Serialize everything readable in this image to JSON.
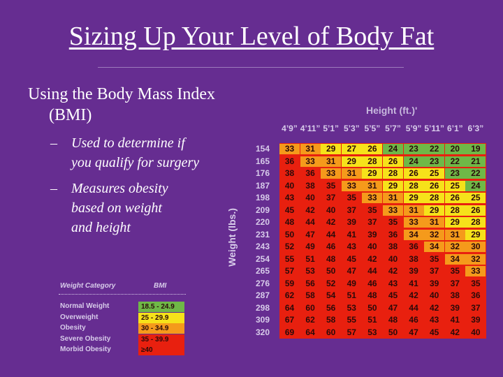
{
  "title": "Sizing Up Your Level of Body Fat",
  "bullets": {
    "main_line1": "Using the Body Mass Index",
    "main_line2": "(BMI)",
    "dash": "–",
    "sub1_line1": "Used to determine if",
    "sub1_line2": "you qualify for surgery",
    "sub2_line1": "Measures obesity",
    "sub2_line2": "based on weight",
    "sub2_line3": "and height"
  },
  "chart": {
    "height_label": "Height (ft.)'",
    "weight_label": "Weight (lbs.)",
    "heights": [
      "4’9”",
      "4’11”",
      "5’1”",
      "5’3”",
      "5’5”",
      "5’7”",
      "5’9”",
      "5’11”",
      "6’1”",
      "6’3”"
    ],
    "weights": [
      "154",
      "165",
      "176",
      "187",
      "198",
      "209",
      "220",
      "231",
      "243",
      "254",
      "265",
      "276",
      "287",
      "298",
      "309",
      "320"
    ],
    "rows": [
      [
        33,
        31,
        29,
        27,
        26,
        24,
        23,
        22,
        20,
        19
      ],
      [
        36,
        33,
        31,
        29,
        28,
        26,
        24,
        23,
        22,
        21
      ],
      [
        38,
        36,
        33,
        31,
        29,
        28,
        26,
        25,
        23,
        22
      ],
      [
        40,
        38,
        35,
        33,
        31,
        29,
        28,
        26,
        25,
        24
      ],
      [
        43,
        40,
        37,
        35,
        33,
        31,
        29,
        28,
        26,
        25
      ],
      [
        45,
        42,
        40,
        37,
        35,
        33,
        31,
        29,
        28,
        26
      ],
      [
        48,
        44,
        42,
        39,
        37,
        35,
        33,
        31,
        29,
        28
      ],
      [
        50,
        47,
        44,
        41,
        39,
        36,
        34,
        32,
        31,
        29
      ],
      [
        52,
        49,
        46,
        43,
        40,
        38,
        36,
        34,
        32,
        30
      ],
      [
        55,
        51,
        48,
        45,
        42,
        40,
        38,
        35,
        34,
        32
      ],
      [
        57,
        53,
        50,
        47,
        44,
        42,
        39,
        37,
        35,
        33
      ],
      [
        59,
        56,
        52,
        49,
        46,
        43,
        41,
        39,
        37,
        35
      ],
      [
        62,
        58,
        54,
        51,
        48,
        45,
        42,
        40,
        38,
        36
      ],
      [
        64,
        60,
        56,
        53,
        50,
        47,
        44,
        42,
        39,
        37
      ],
      [
        67,
        62,
        58,
        55,
        51,
        48,
        46,
        43,
        41,
        39
      ],
      [
        69,
        64,
        60,
        57,
        53,
        50,
        47,
        45,
        42,
        40
      ]
    ],
    "colors": {
      "normal": "#6fb847",
      "overweight": "#f6e21a",
      "obese": "#f59a1b",
      "severe": "#e8200f",
      "morbid": "#e8200f"
    }
  },
  "legend": {
    "category_header": "Weight Category",
    "bmi_header": "BMI",
    "items": [
      {
        "category": "Normal Weight",
        "range": "18.5 - 24.9",
        "color": "#6fb847"
      },
      {
        "category": "Overweight",
        "range": "25 - 29.9",
        "color": "#f6e21a"
      },
      {
        "category": "Obesity",
        "range": "30 - 34.9",
        "color": "#f59a1b"
      },
      {
        "category": "Severe Obesity",
        "range": "35 - 39.9",
        "color": "#e8200f"
      },
      {
        "category": "Morbid Obesity",
        "range": "≥40",
        "color": "#e8200f"
      }
    ]
  }
}
